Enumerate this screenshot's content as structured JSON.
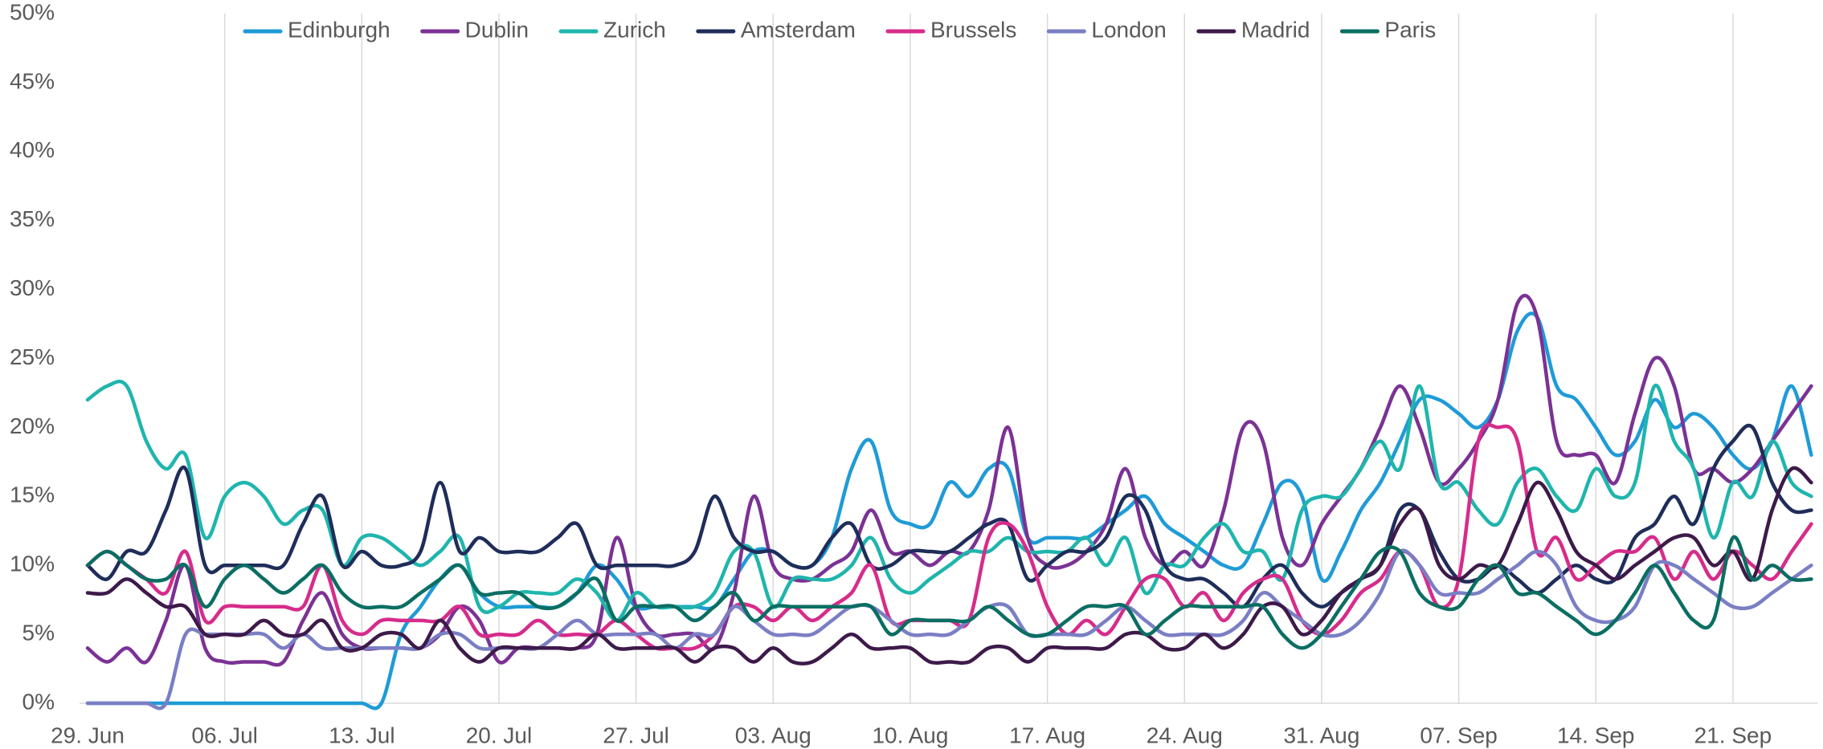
{
  "chart_data": {
    "type": "line",
    "categories": [
      "29. Jun",
      null,
      null,
      null,
      null,
      null,
      null,
      "06. Jul",
      null,
      null,
      null,
      null,
      null,
      null,
      "13. Jul",
      null,
      null,
      null,
      null,
      null,
      null,
      "20. Jul",
      null,
      null,
      null,
      null,
      null,
      null,
      "27. Jul",
      null,
      null,
      null,
      null,
      null,
      null,
      "03. Aug",
      null,
      null,
      null,
      null,
      null,
      null,
      "10. Aug",
      null,
      null,
      null,
      null,
      null,
      null,
      "17. Aug",
      null,
      null,
      null,
      null,
      null,
      null,
      "24. Aug",
      null,
      null,
      null,
      null,
      null,
      null,
      "31. Aug",
      null,
      null,
      null,
      null,
      null,
      null,
      "07. Sep",
      null,
      null,
      null,
      null,
      null,
      null,
      "14. Sep",
      null,
      null,
      null,
      null,
      null,
      null,
      "21. Sep",
      null,
      null,
      null,
      null
    ],
    "ylim": [
      0,
      50
    ],
    "yticks": [
      {
        "value": 0,
        "label": "0%"
      },
      {
        "value": 5,
        "label": "5%"
      },
      {
        "value": 10,
        "label": "10%"
      },
      {
        "value": 15,
        "label": "15%"
      },
      {
        "value": 20,
        "label": "20%"
      },
      {
        "value": 25,
        "label": "25%"
      },
      {
        "value": 30,
        "label": "30%"
      },
      {
        "value": 35,
        "label": "35%"
      },
      {
        "value": 40,
        "label": "40%"
      },
      {
        "value": 45,
        "label": "45%"
      },
      {
        "value": 50,
        "label": "50%"
      }
    ],
    "grid": "x",
    "legend": "top",
    "series": [
      {
        "name": "Edinburgh",
        "color": "#1f9bd7",
        "values": [
          0,
          0,
          0,
          0,
          0,
          0,
          0,
          0,
          0,
          0,
          0,
          0,
          0,
          0,
          0,
          0,
          5,
          7,
          9,
          10,
          8,
          7,
          7,
          7,
          7,
          8,
          10,
          9,
          7,
          7,
          7,
          7,
          7,
          9,
          11,
          11,
          10,
          10,
          12,
          17,
          19,
          14,
          13,
          13,
          16,
          15,
          17,
          17,
          12,
          12,
          12,
          12,
          13,
          14,
          15,
          13,
          12,
          11,
          10,
          10,
          13,
          16,
          15,
          9,
          11,
          14,
          16,
          19,
          22,
          22,
          21,
          20,
          22,
          27,
          28,
          23,
          22,
          20,
          18,
          19,
          22,
          20,
          21,
          20,
          18,
          17,
          19,
          23,
          18
        ]
      },
      {
        "name": "Dublin",
        "color": "#7b3294",
        "values": [
          4,
          3,
          4,
          3,
          6,
          10,
          4,
          3,
          3,
          3,
          3,
          6,
          8,
          5,
          4,
          4,
          4,
          4,
          5,
          7,
          6,
          3,
          4,
          4,
          4,
          4,
          5,
          12,
          7,
          5,
          5,
          5,
          4,
          8,
          15,
          10,
          9,
          9,
          10,
          11,
          14,
          11,
          11,
          10,
          11,
          11,
          14,
          20,
          12,
          10,
          10,
          11,
          13,
          17,
          12,
          10,
          11,
          10,
          14,
          20,
          19,
          12,
          10,
          13,
          15,
          17,
          20,
          23,
          20,
          16,
          17,
          19,
          22,
          29,
          28,
          19,
          18,
          18,
          16,
          21,
          25,
          23,
          17,
          17,
          16,
          17,
          19,
          21,
          23
        ]
      },
      {
        "name": "Zurich",
        "color": "#1fb5ad",
        "values": [
          22,
          23,
          23,
          19,
          17,
          18,
          12,
          15,
          16,
          15,
          13,
          14,
          14,
          10,
          12,
          12,
          11,
          10,
          11,
          12,
          7,
          7,
          8,
          8,
          8,
          9,
          8,
          6,
          8,
          7,
          7,
          7,
          8,
          11,
          11,
          7,
          9,
          9,
          9,
          10,
          12,
          9,
          8,
          9,
          10,
          11,
          11,
          12,
          11,
          11,
          11,
          12,
          10,
          12,
          8,
          10,
          10,
          12,
          13,
          11,
          11,
          9,
          14,
          15,
          15,
          17,
          19,
          17,
          23,
          16,
          16,
          14,
          13,
          16,
          17,
          15,
          14,
          17,
          15,
          16,
          23,
          19,
          17,
          12,
          16,
          15,
          19,
          16,
          15
        ]
      },
      {
        "name": "Amsterdam",
        "color": "#1f2d5a",
        "values": [
          10,
          9,
          11,
          11,
          14,
          17,
          10,
          10,
          10,
          10,
          10,
          13,
          15,
          10,
          11,
          10,
          10,
          11,
          16,
          11,
          12,
          11,
          11,
          11,
          12,
          13,
          10,
          10,
          10,
          10,
          10,
          11,
          15,
          12,
          11,
          11,
          10,
          10,
          12,
          13,
          10,
          10,
          11,
          11,
          11,
          12,
          13,
          13,
          9,
          10,
          11,
          11,
          12,
          15,
          14,
          10,
          9,
          9,
          8,
          7,
          9,
          10,
          8,
          7,
          8,
          9,
          10,
          14,
          14,
          11,
          9,
          9,
          10,
          9,
          8,
          9,
          10,
          9,
          9,
          12,
          13,
          15,
          13,
          17,
          19,
          20,
          16,
          14,
          14
        ]
      },
      {
        "name": "Brussels",
        "color": "#d62c8b",
        "values": [
          10,
          11,
          10,
          9,
          8,
          11,
          6,
          7,
          7,
          7,
          7,
          7,
          10,
          6,
          5,
          6,
          6,
          6,
          6,
          7,
          5,
          5,
          5,
          6,
          5,
          5,
          5,
          6,
          5,
          4,
          4,
          4,
          5,
          7,
          7,
          6,
          7,
          6,
          7,
          8,
          10,
          6,
          6,
          6,
          6,
          6,
          12,
          13,
          11,
          7,
          5,
          6,
          5,
          7,
          9,
          9,
          7,
          8,
          6,
          8,
          9,
          9,
          6,
          5,
          6,
          8,
          9,
          11,
          10,
          7,
          9,
          19,
          20,
          19,
          11,
          12,
          9,
          10,
          11,
          11,
          12,
          9,
          11,
          9,
          11,
          10,
          9,
          11,
          13
        ]
      },
      {
        "name": "London",
        "color": "#7a7fc4",
        "values": [
          0,
          0,
          0,
          0,
          0,
          5,
          5,
          5,
          5,
          5,
          4,
          5,
          4,
          4,
          4,
          4,
          4,
          4,
          5,
          5,
          4,
          4,
          4,
          4,
          5,
          6,
          5,
          5,
          5,
          5,
          4,
          5,
          5,
          7,
          6,
          5,
          5,
          5,
          6,
          7,
          7,
          6,
          5,
          5,
          5,
          6,
          7,
          7,
          5,
          5,
          5,
          5,
          6,
          7,
          6,
          5,
          5,
          5,
          5,
          6,
          8,
          7,
          6,
          5,
          5,
          6,
          8,
          11,
          10,
          8,
          8,
          8,
          9,
          10,
          11,
          10,
          7,
          6,
          6,
          7,
          10,
          10,
          9,
          8,
          7,
          7,
          8,
          9,
          10
        ]
      },
      {
        "name": "Madrid",
        "color": "#3d1a4a",
        "values": [
          8,
          8,
          9,
          8,
          7,
          7,
          5,
          5,
          5,
          6,
          5,
          5,
          6,
          4,
          4,
          5,
          5,
          4,
          6,
          4,
          3,
          4,
          4,
          4,
          4,
          4,
          5,
          4,
          4,
          4,
          4,
          3,
          4,
          4,
          3,
          4,
          3,
          3,
          4,
          5,
          4,
          4,
          4,
          3,
          3,
          3,
          4,
          4,
          3,
          4,
          4,
          4,
          4,
          5,
          5,
          4,
          4,
          5,
          4,
          5,
          7,
          7,
          5,
          6,
          8,
          9,
          10,
          13,
          14,
          10,
          9,
          10,
          10,
          13,
          16,
          14,
          11,
          10,
          9,
          10,
          11,
          12,
          12,
          10,
          11,
          9,
          14,
          17,
          16
        ]
      },
      {
        "name": "Paris",
        "color": "#0b6e63",
        "values": [
          10,
          11,
          10,
          9,
          9,
          10,
          7,
          9,
          10,
          9,
          8,
          9,
          10,
          8,
          7,
          7,
          7,
          8,
          9,
          10,
          8,
          8,
          8,
          7,
          7,
          8,
          9,
          6,
          7,
          7,
          7,
          6,
          7,
          8,
          6,
          7,
          7,
          7,
          7,
          7,
          7,
          5,
          6,
          6,
          6,
          6,
          7,
          6,
          5,
          5,
          6,
          7,
          7,
          7,
          5,
          6,
          7,
          7,
          7,
          7,
          7,
          5,
          4,
          5,
          7,
          9,
          11,
          11,
          8,
          7,
          7,
          9,
          10,
          8,
          8,
          7,
          6,
          5,
          6,
          8,
          10,
          8,
          6,
          6,
          12,
          9,
          10,
          9,
          9
        ]
      }
    ]
  }
}
